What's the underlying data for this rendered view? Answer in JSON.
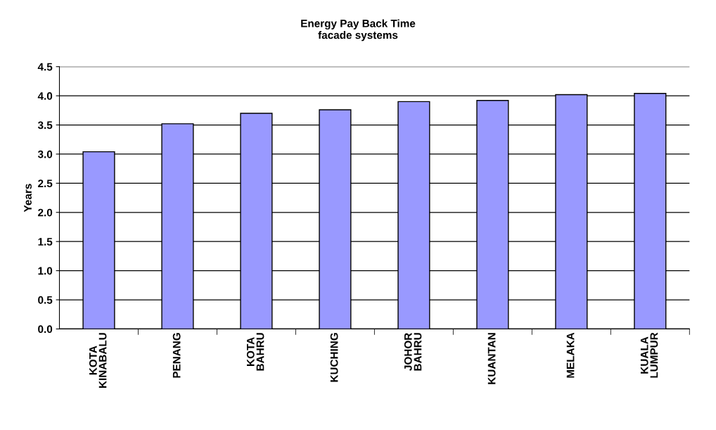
{
  "chart_data": {
    "type": "bar",
    "title": "Energy Pay Back Time\nfacade systems",
    "ylabel": "Years",
    "categories": [
      "KOTA\nKINABALU",
      "PENANG",
      "KOTA\nBAHRU",
      "KUCHING",
      "JOHOR\nBAHRU",
      "KUANTAN",
      "MELAKA",
      "KUALA\nLUMPUR"
    ],
    "values": [
      3.04,
      3.52,
      3.7,
      3.76,
      3.9,
      3.92,
      4.02,
      4.04
    ],
    "color": "#9999ff",
    "ylim": [
      0,
      4.5
    ],
    "yticks": [
      {
        "value": 0,
        "label": "0.0"
      },
      {
        "value": 0.5,
        "label": "0.5"
      },
      {
        "value": 1,
        "label": "1.0"
      },
      {
        "value": 1.5,
        "label": "1.5"
      },
      {
        "value": 2,
        "label": "2.0"
      },
      {
        "value": 2.5,
        "label": "2.5"
      },
      {
        "value": 3,
        "label": "3.0"
      },
      {
        "value": 3.5,
        "label": "3.5"
      },
      {
        "value": 4,
        "label": "4.0"
      },
      {
        "value": 4.5,
        "label": "4.5"
      }
    ],
    "grid": "y"
  }
}
